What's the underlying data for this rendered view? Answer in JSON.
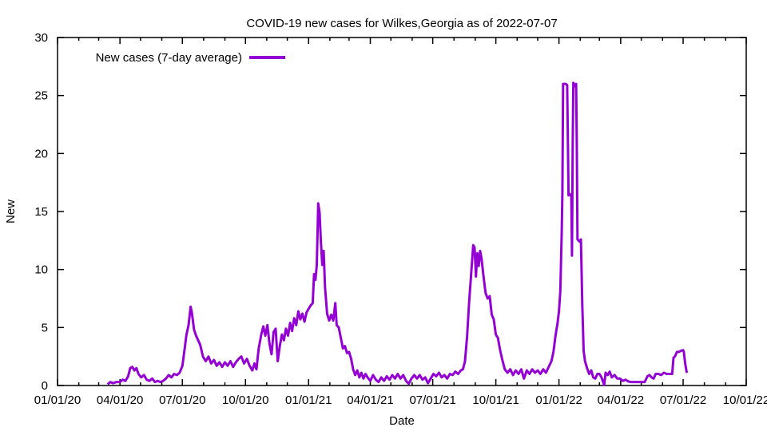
{
  "window": {
    "background": "#ffffff"
  },
  "chart_data": {
    "type": "line",
    "title": "COVID-19 new cases for Wilkes,Georgia as of 2022-07-07",
    "xlabel": "Date",
    "ylabel": "New",
    "ylim": [
      0,
      30
    ],
    "y_ticks": [
      0,
      5,
      10,
      15,
      20,
      25,
      30
    ],
    "x_range": [
      "2020-01-01",
      "2022-10-01"
    ],
    "x_ticks": [
      {
        "date": "2020-01-01",
        "label": "01/01/20"
      },
      {
        "date": "2020-04-01",
        "label": "04/01/20"
      },
      {
        "date": "2020-07-01",
        "label": "07/01/20"
      },
      {
        "date": "2020-10-01",
        "label": "10/01/20"
      },
      {
        "date": "2021-01-01",
        "label": "01/01/21"
      },
      {
        "date": "2021-04-01",
        "label": "04/01/21"
      },
      {
        "date": "2021-07-01",
        "label": "07/01/21"
      },
      {
        "date": "2021-10-01",
        "label": "10/01/21"
      },
      {
        "date": "2022-01-01",
        "label": "01/01/22"
      },
      {
        "date": "2022-04-01",
        "label": "04/01/22"
      },
      {
        "date": "2022-07-01",
        "label": "07/01/22"
      },
      {
        "date": "2022-10-01",
        "label": "10/01/22"
      }
    ],
    "minor_x_tick_interval": "month",
    "grid": false,
    "legend_position": "top-left-inside",
    "axis_color": "#000000",
    "series": [
      {
        "name": "New cases (7-day average)",
        "color": "#9400D3",
        "points": [
          [
            "2020-03-14",
            0.1
          ],
          [
            "2020-03-18",
            0.3
          ],
          [
            "2020-03-22",
            0.2
          ],
          [
            "2020-03-27",
            0.3
          ],
          [
            "2020-04-01",
            0.3
          ],
          [
            "2020-04-05",
            0.5
          ],
          [
            "2020-04-09",
            0.4
          ],
          [
            "2020-04-13",
            0.8
          ],
          [
            "2020-04-16",
            1.5
          ],
          [
            "2020-04-19",
            1.6
          ],
          [
            "2020-04-22",
            1.3
          ],
          [
            "2020-04-25",
            1.5
          ],
          [
            "2020-04-28",
            1.0
          ],
          [
            "2020-05-02",
            0.7
          ],
          [
            "2020-05-06",
            0.9
          ],
          [
            "2020-05-10",
            0.5
          ],
          [
            "2020-05-14",
            0.4
          ],
          [
            "2020-05-18",
            0.6
          ],
          [
            "2020-05-22",
            0.3
          ],
          [
            "2020-05-26",
            0.4
          ],
          [
            "2020-05-30",
            0.3
          ],
          [
            "2020-06-03",
            0.4
          ],
          [
            "2020-06-07",
            0.6
          ],
          [
            "2020-06-11",
            0.9
          ],
          [
            "2020-06-15",
            0.7
          ],
          [
            "2020-06-19",
            1.0
          ],
          [
            "2020-06-23",
            0.9
          ],
          [
            "2020-06-27",
            1.1
          ],
          [
            "2020-07-01",
            1.7
          ],
          [
            "2020-07-04",
            3.0
          ],
          [
            "2020-07-07",
            4.4
          ],
          [
            "2020-07-10",
            5.2
          ],
          [
            "2020-07-13",
            6.8
          ],
          [
            "2020-07-15",
            6.2
          ],
          [
            "2020-07-18",
            4.8
          ],
          [
            "2020-07-21",
            4.3
          ],
          [
            "2020-07-24",
            3.9
          ],
          [
            "2020-07-27",
            3.5
          ],
          [
            "2020-07-31",
            2.5
          ],
          [
            "2020-08-04",
            2.1
          ],
          [
            "2020-08-08",
            2.5
          ],
          [
            "2020-08-12",
            1.9
          ],
          [
            "2020-08-16",
            2.2
          ],
          [
            "2020-08-20",
            1.7
          ],
          [
            "2020-08-24",
            2.0
          ],
          [
            "2020-08-28",
            1.6
          ],
          [
            "2020-09-01",
            2.0
          ],
          [
            "2020-09-05",
            1.7
          ],
          [
            "2020-09-09",
            2.1
          ],
          [
            "2020-09-13",
            1.6
          ],
          [
            "2020-09-17",
            2.0
          ],
          [
            "2020-09-21",
            2.3
          ],
          [
            "2020-09-25",
            2.5
          ],
          [
            "2020-09-29",
            1.9
          ],
          [
            "2020-10-03",
            2.3
          ],
          [
            "2020-10-07",
            1.7
          ],
          [
            "2020-10-11",
            1.3
          ],
          [
            "2020-10-14",
            1.9
          ],
          [
            "2020-10-17",
            1.4
          ],
          [
            "2020-10-20",
            3.1
          ],
          [
            "2020-10-24",
            4.4
          ],
          [
            "2020-10-27",
            5.1
          ],
          [
            "2020-10-30",
            4.3
          ],
          [
            "2020-11-02",
            5.2
          ],
          [
            "2020-11-05",
            3.6
          ],
          [
            "2020-11-08",
            2.7
          ],
          [
            "2020-11-11",
            4.6
          ],
          [
            "2020-11-14",
            4.9
          ],
          [
            "2020-11-17",
            2.1
          ],
          [
            "2020-11-20",
            3.4
          ],
          [
            "2020-11-23",
            4.4
          ],
          [
            "2020-11-26",
            3.9
          ],
          [
            "2020-11-29",
            4.9
          ],
          [
            "2020-12-02",
            4.3
          ],
          [
            "2020-12-05",
            5.4
          ],
          [
            "2020-12-08",
            4.7
          ],
          [
            "2020-12-11",
            5.8
          ],
          [
            "2020-12-14",
            5.2
          ],
          [
            "2020-12-17",
            6.4
          ],
          [
            "2020-12-20",
            5.7
          ],
          [
            "2020-12-23",
            6.2
          ],
          [
            "2020-12-26",
            5.5
          ],
          [
            "2020-12-29",
            6.3
          ],
          [
            "2021-01-01",
            6.6
          ],
          [
            "2021-01-04",
            6.9
          ],
          [
            "2021-01-07",
            7.1
          ],
          [
            "2021-01-09",
            9.6
          ],
          [
            "2021-01-11",
            9.1
          ],
          [
            "2021-01-13",
            10.4
          ],
          [
            "2021-01-15",
            15.7
          ],
          [
            "2021-01-17",
            14.9
          ],
          [
            "2021-01-19",
            12.3
          ],
          [
            "2021-01-21",
            10.4
          ],
          [
            "2021-01-23",
            11.6
          ],
          [
            "2021-01-25",
            8.5
          ],
          [
            "2021-01-28",
            6.2
          ],
          [
            "2021-01-31",
            5.6
          ],
          [
            "2021-02-03",
            6.1
          ],
          [
            "2021-02-06",
            5.6
          ],
          [
            "2021-02-09",
            7.1
          ],
          [
            "2021-02-11",
            5.2
          ],
          [
            "2021-02-14",
            5.0
          ],
          [
            "2021-02-17",
            4.1
          ],
          [
            "2021-02-20",
            3.2
          ],
          [
            "2021-02-23",
            3.4
          ],
          [
            "2021-02-26",
            2.8
          ],
          [
            "2021-03-01",
            2.9
          ],
          [
            "2021-03-04",
            2.3
          ],
          [
            "2021-03-07",
            1.4
          ],
          [
            "2021-03-10",
            0.9
          ],
          [
            "2021-03-13",
            1.3
          ],
          [
            "2021-03-16",
            0.7
          ],
          [
            "2021-03-19",
            1.1
          ],
          [
            "2021-03-22",
            0.6
          ],
          [
            "2021-03-25",
            1.0
          ],
          [
            "2021-03-28",
            0.7
          ],
          [
            "2021-04-01",
            0.4
          ],
          [
            "2021-04-05",
            0.9
          ],
          [
            "2021-04-09",
            0.5
          ],
          [
            "2021-04-13",
            0.3
          ],
          [
            "2021-04-17",
            0.7
          ],
          [
            "2021-04-21",
            0.4
          ],
          [
            "2021-04-25",
            0.8
          ],
          [
            "2021-04-29",
            0.5
          ],
          [
            "2021-05-03",
            0.9
          ],
          [
            "2021-05-07",
            0.6
          ],
          [
            "2021-05-11",
            1.0
          ],
          [
            "2021-05-15",
            0.6
          ],
          [
            "2021-05-19",
            0.9
          ],
          [
            "2021-05-23",
            0.4
          ],
          [
            "2021-05-27",
            0.15
          ],
          [
            "2021-05-31",
            0.6
          ],
          [
            "2021-06-04",
            0.9
          ],
          [
            "2021-06-08",
            0.6
          ],
          [
            "2021-06-12",
            0.9
          ],
          [
            "2021-06-16",
            0.5
          ],
          [
            "2021-06-20",
            0.7
          ],
          [
            "2021-06-24",
            0.2
          ],
          [
            "2021-06-28",
            0.6
          ],
          [
            "2021-07-02",
            1.0
          ],
          [
            "2021-07-06",
            0.8
          ],
          [
            "2021-07-10",
            1.1
          ],
          [
            "2021-07-14",
            0.7
          ],
          [
            "2021-07-18",
            0.9
          ],
          [
            "2021-07-22",
            0.6
          ],
          [
            "2021-07-26",
            1.0
          ],
          [
            "2021-07-30",
            0.9
          ],
          [
            "2021-08-03",
            1.2
          ],
          [
            "2021-08-07",
            1.0
          ],
          [
            "2021-08-11",
            1.3
          ],
          [
            "2021-08-14",
            1.4
          ],
          [
            "2021-08-17",
            2.1
          ],
          [
            "2021-08-20",
            4.2
          ],
          [
            "2021-08-23",
            7.1
          ],
          [
            "2021-08-26",
            9.6
          ],
          [
            "2021-08-29",
            12.1
          ],
          [
            "2021-08-31",
            11.9
          ],
          [
            "2021-09-02",
            9.4
          ],
          [
            "2021-09-04",
            11.4
          ],
          [
            "2021-09-06",
            10.3
          ],
          [
            "2021-09-08",
            11.6
          ],
          [
            "2021-09-10",
            11.0
          ],
          [
            "2021-09-13",
            9.4
          ],
          [
            "2021-09-16",
            8.0
          ],
          [
            "2021-09-19",
            7.5
          ],
          [
            "2021-09-22",
            7.7
          ],
          [
            "2021-09-25",
            6.1
          ],
          [
            "2021-09-28",
            5.7
          ],
          [
            "2021-10-01",
            4.4
          ],
          [
            "2021-10-04",
            4.1
          ],
          [
            "2021-10-07",
            3.1
          ],
          [
            "2021-10-10",
            2.3
          ],
          [
            "2021-10-14",
            1.4
          ],
          [
            "2021-10-18",
            1.1
          ],
          [
            "2021-10-22",
            1.4
          ],
          [
            "2021-10-26",
            0.9
          ],
          [
            "2021-10-30",
            1.3
          ],
          [
            "2021-11-03",
            1.0
          ],
          [
            "2021-11-07",
            1.4
          ],
          [
            "2021-11-11",
            0.6
          ],
          [
            "2021-11-15",
            1.3
          ],
          [
            "2021-11-19",
            1.0
          ],
          [
            "2021-11-23",
            1.4
          ],
          [
            "2021-11-27",
            1.1
          ],
          [
            "2021-12-01",
            1.3
          ],
          [
            "2021-12-05",
            1.0
          ],
          [
            "2021-12-09",
            1.4
          ],
          [
            "2021-12-13",
            1.1
          ],
          [
            "2021-12-17",
            1.6
          ],
          [
            "2021-12-21",
            2.1
          ],
          [
            "2021-12-24",
            2.9
          ],
          [
            "2021-12-27",
            4.3
          ],
          [
            "2021-12-30",
            5.4
          ],
          [
            "2022-01-01",
            6.4
          ],
          [
            "2022-01-03",
            8.1
          ],
          [
            "2022-01-05",
            13.0
          ],
          [
            "2022-01-06",
            16.6
          ],
          [
            "2022-01-07",
            26.0
          ],
          [
            "2022-01-09",
            26.0
          ],
          [
            "2022-01-11",
            26.0
          ],
          [
            "2022-01-13",
            25.9
          ],
          [
            "2022-01-14",
            21.0
          ],
          [
            "2022-01-15",
            16.4
          ],
          [
            "2022-01-17",
            16.5
          ],
          [
            "2022-01-19",
            16.3
          ],
          [
            "2022-01-20",
            11.2
          ],
          [
            "2022-01-21",
            20.6
          ],
          [
            "2022-01-22",
            26.1
          ],
          [
            "2022-01-24",
            25.8
          ],
          [
            "2022-01-26",
            26.0
          ],
          [
            "2022-01-27",
            21.0
          ],
          [
            "2022-01-28",
            12.6
          ],
          [
            "2022-01-31",
            12.4
          ],
          [
            "2022-02-02",
            12.6
          ],
          [
            "2022-02-04",
            7.0
          ],
          [
            "2022-02-06",
            3.0
          ],
          [
            "2022-02-08",
            2.1
          ],
          [
            "2022-02-11",
            1.5
          ],
          [
            "2022-02-14",
            1.0
          ],
          [
            "2022-02-17",
            1.3
          ],
          [
            "2022-02-20",
            0.7
          ],
          [
            "2022-02-23",
            0.6
          ],
          [
            "2022-02-26",
            1.0
          ],
          [
            "2022-03-01",
            1.0
          ],
          [
            "2022-03-04",
            0.7
          ],
          [
            "2022-03-08",
            0.05
          ],
          [
            "2022-03-10",
            1.1
          ],
          [
            "2022-03-13",
            0.9
          ],
          [
            "2022-03-16",
            1.2
          ],
          [
            "2022-03-19",
            0.7
          ],
          [
            "2022-03-23",
            0.9
          ],
          [
            "2022-03-27",
            0.6
          ],
          [
            "2022-03-31",
            0.6
          ],
          [
            "2022-04-04",
            0.4
          ],
          [
            "2022-04-08",
            0.5
          ],
          [
            "2022-04-12",
            0.35
          ],
          [
            "2022-04-16",
            0.3
          ],
          [
            "2022-04-21",
            0.3
          ],
          [
            "2022-04-26",
            0.3
          ],
          [
            "2022-05-01",
            0.3
          ],
          [
            "2022-05-06",
            0.3
          ],
          [
            "2022-05-10",
            0.8
          ],
          [
            "2022-05-13",
            0.9
          ],
          [
            "2022-05-16",
            0.7
          ],
          [
            "2022-05-19",
            0.6
          ],
          [
            "2022-05-22",
            1.0
          ],
          [
            "2022-05-26",
            1.0
          ],
          [
            "2022-05-30",
            0.9
          ],
          [
            "2022-06-03",
            1.1
          ],
          [
            "2022-06-07",
            1.0
          ],
          [
            "2022-06-11",
            1.0
          ],
          [
            "2022-06-15",
            1.0
          ],
          [
            "2022-06-17",
            2.4
          ],
          [
            "2022-06-19",
            2.5
          ],
          [
            "2022-06-22",
            2.9
          ],
          [
            "2022-06-25",
            2.9
          ],
          [
            "2022-06-28",
            3.0
          ],
          [
            "2022-07-01",
            3.05
          ],
          [
            "2022-07-02",
            2.9
          ],
          [
            "2022-07-04",
            1.9
          ],
          [
            "2022-07-06",
            1.2
          ],
          [
            "2022-07-07",
            1.1
          ]
        ]
      }
    ]
  }
}
